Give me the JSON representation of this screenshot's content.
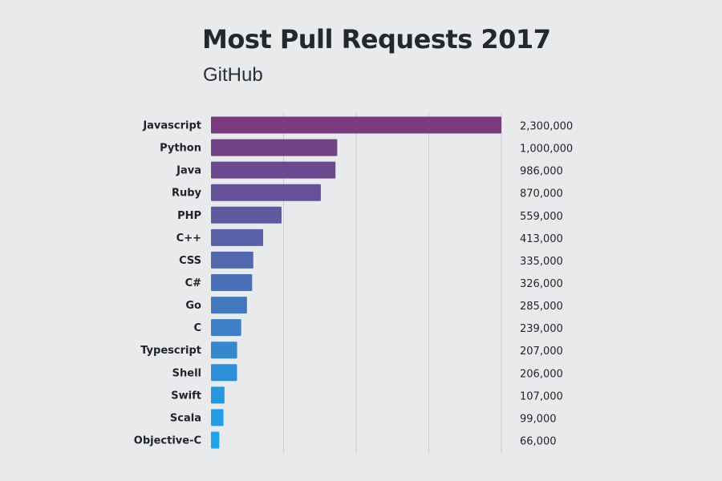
{
  "title": "Most Pull Requests 2017",
  "subtitle": "GitHub",
  "chart_data": {
    "type": "bar",
    "orientation": "horizontal",
    "title": "Most Pull Requests 2017",
    "subtitle": "GitHub",
    "categories": [
      "Javascript",
      "Python",
      "Java",
      "Ruby",
      "PHP",
      "C++",
      "CSS",
      "C#",
      "Go",
      "C",
      "Typescript",
      "Shell",
      "Swift",
      "Scala",
      "Objective-C"
    ],
    "values": [
      2300000,
      1000000,
      986000,
      870000,
      559000,
      413000,
      335000,
      326000,
      285000,
      239000,
      207000,
      206000,
      107000,
      99000,
      66000
    ],
    "value_labels": [
      "2,300,000",
      "1,000,000",
      "986,000",
      "870,000",
      "559,000",
      "413,000",
      "335,000",
      "326,000",
      "285,000",
      "239,000",
      "207,000",
      "206,000",
      "107,000",
      "99,000",
      "66,000"
    ],
    "xlim": [
      0,
      2300000
    ],
    "grid": true,
    "legend": "none",
    "colors": {
      "bar_start": "#7a3a7f",
      "bar_end": "#1aa6ee",
      "grid": "#c9cbd0"
    }
  }
}
